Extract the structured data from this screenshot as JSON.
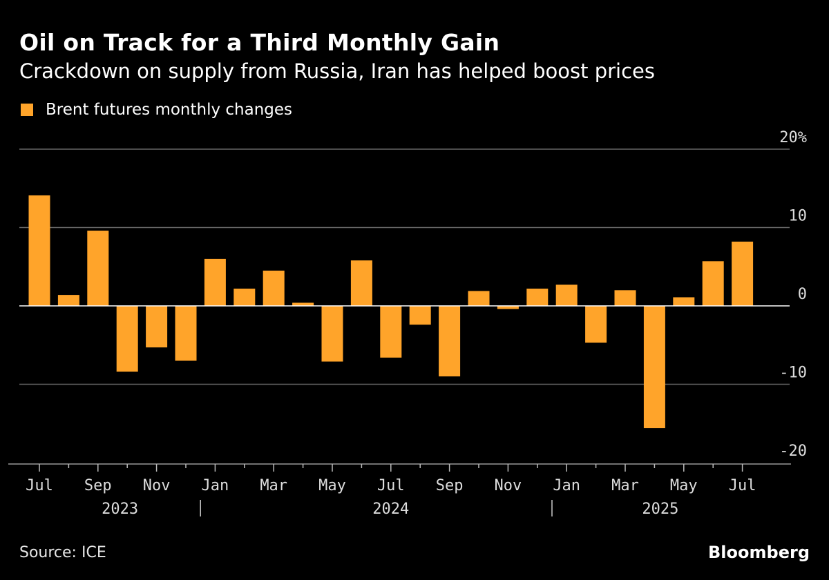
{
  "title": "Oil on Track for a Third Monthly Gain",
  "subtitle": "Crackdown on supply from Russia, Iran has helped boost prices",
  "source": "Source: ICE",
  "brand": "Bloomberg",
  "colors": {
    "bar": "#ffa42a",
    "background": "#000000",
    "grid": "#666666"
  },
  "chart_data": {
    "type": "bar",
    "legend": {
      "label": "Brent futures monthly changes",
      "placement": "top-left"
    },
    "categories": [
      "2023-07",
      "2023-08",
      "2023-09",
      "2023-10",
      "2023-11",
      "2023-12",
      "2024-01",
      "2024-02",
      "2024-03",
      "2024-04",
      "2024-05",
      "2024-06",
      "2024-07",
      "2024-08",
      "2024-09",
      "2024-10",
      "2024-11",
      "2024-12",
      "2025-01",
      "2025-02",
      "2025-03",
      "2025-04",
      "2025-05",
      "2025-06",
      "2025-07"
    ],
    "series": [
      {
        "name": "Brent futures monthly changes",
        "values": [
          14.1,
          1.4,
          9.6,
          -8.4,
          -5.3,
          -7.0,
          6.0,
          2.2,
          4.5,
          0.4,
          -7.1,
          5.8,
          -6.6,
          -2.4,
          -9.0,
          1.9,
          -0.4,
          2.2,
          2.7,
          -4.7,
          2.0,
          -15.6,
          1.1,
          5.7,
          8.2
        ]
      }
    ],
    "ylim": [
      -20,
      20
    ],
    "y_ticks": [
      {
        "value": 20,
        "label": "20%"
      },
      {
        "value": 10,
        "label": "10"
      },
      {
        "value": 0,
        "label": "0"
      },
      {
        "value": -10,
        "label": "-10"
      },
      {
        "value": -20,
        "label": "-20"
      }
    ],
    "x_tick_labels": [
      {
        "index": 0,
        "label": "Jul"
      },
      {
        "index": 2,
        "label": "Sep"
      },
      {
        "index": 4,
        "label": "Nov"
      },
      {
        "index": 6,
        "label": "Jan"
      },
      {
        "index": 8,
        "label": "Mar"
      },
      {
        "index": 10,
        "label": "May"
      },
      {
        "index": 12,
        "label": "Jul"
      },
      {
        "index": 14,
        "label": "Sep"
      },
      {
        "index": 16,
        "label": "Nov"
      },
      {
        "index": 18,
        "label": "Jan"
      },
      {
        "index": 20,
        "label": "Mar"
      },
      {
        "index": 22,
        "label": "May"
      },
      {
        "index": 24,
        "label": "Jul"
      }
    ],
    "year_labels": [
      {
        "label": "2023",
        "center_index": 2.75
      },
      {
        "label": "2024",
        "center_index": 12
      },
      {
        "label": "2025",
        "center_index": 21.2
      }
    ],
    "year_separators": [
      5.5,
      17.5
    ],
    "xlabel": "",
    "ylabel": "",
    "grid": true
  }
}
